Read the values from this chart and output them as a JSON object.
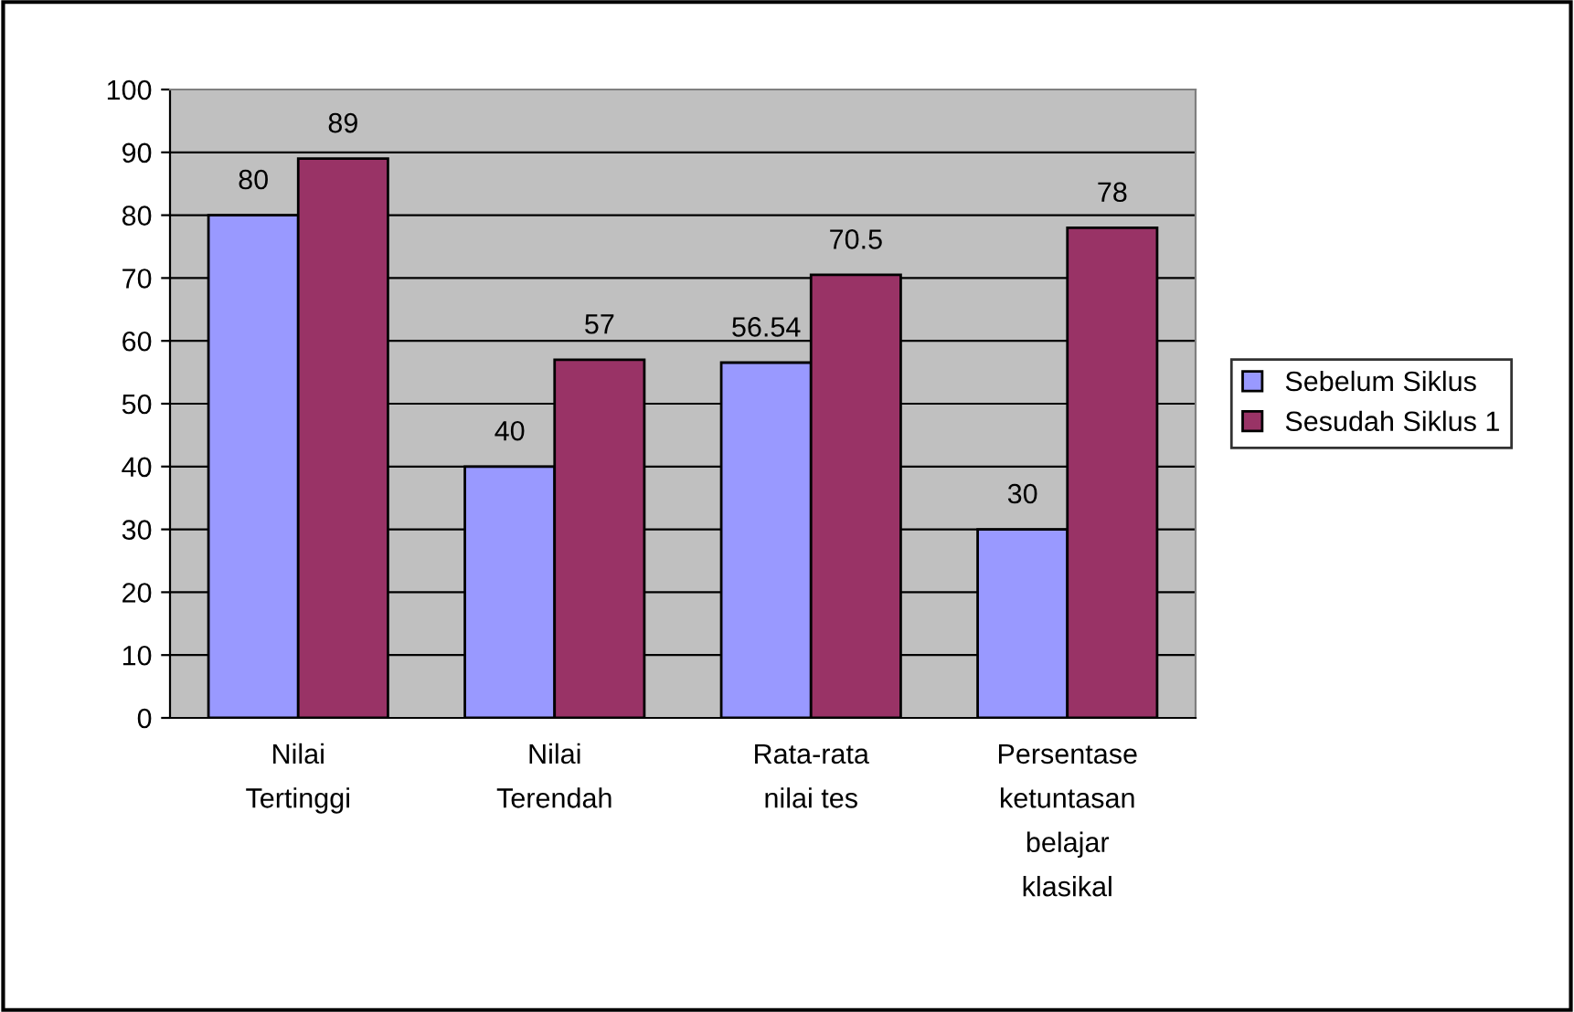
{
  "chart_data": {
    "type": "bar",
    "categories": [
      "Nilai\nTertinggi",
      "Nilai\nTerendah",
      "Rata-rata\nnilai tes",
      "Persentase\nketuntasan\nbelajar\nklasikal"
    ],
    "series": [
      {
        "name": "Sebelum Siklus",
        "color": "#9999ff",
        "values": [
          80,
          40,
          56.54,
          30
        ]
      },
      {
        "name": "Sesudah Siklus 1",
        "color": "#993366",
        "values": [
          89,
          57,
          70.5,
          78
        ]
      }
    ],
    "ylim": [
      0,
      100
    ],
    "yticks": [
      0,
      10,
      20,
      30,
      40,
      50,
      60,
      70,
      80,
      90,
      100
    ],
    "grid": "y",
    "legend": "right",
    "data_labels": true
  }
}
